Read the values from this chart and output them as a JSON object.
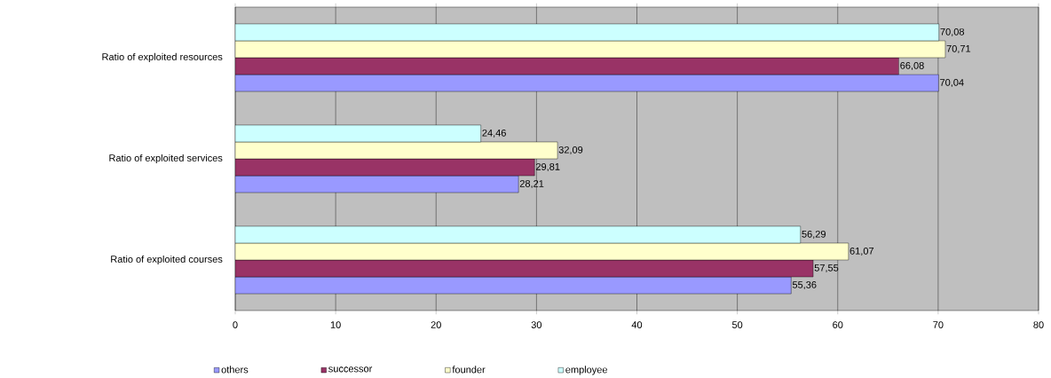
{
  "chart_data": {
    "type": "bar",
    "orientation": "horizontal",
    "categories": [
      "Ratio of exploited resources",
      "Ratio of exploited services",
      "Ratio of exploited courses"
    ],
    "series": [
      {
        "name": "others",
        "color": "#9999ff",
        "values": [
          70.04,
          28.21,
          55.36
        ],
        "value_labels": [
          "70,04",
          "28,21",
          "55,36"
        ]
      },
      {
        "name": "successor",
        "color": "#993366",
        "values": [
          66.08,
          29.81,
          57.55
        ],
        "value_labels": [
          "66,08",
          "29,81",
          "57,55"
        ]
      },
      {
        "name": "founder",
        "color": "#ffffcc",
        "values": [
          70.71,
          32.09,
          61.07
        ],
        "value_labels": [
          "70,71",
          "32,09",
          "61,07"
        ]
      },
      {
        "name": "employee",
        "color": "#ccffff",
        "values": [
          70.08,
          24.46,
          56.29
        ],
        "value_labels": [
          "70,08",
          "24,46",
          "56,29"
        ]
      }
    ],
    "xlim": [
      0,
      80
    ],
    "xticks": [
      0,
      10,
      20,
      30,
      40,
      50,
      60,
      70,
      80
    ],
    "grid": "x",
    "legend": "bottom"
  }
}
